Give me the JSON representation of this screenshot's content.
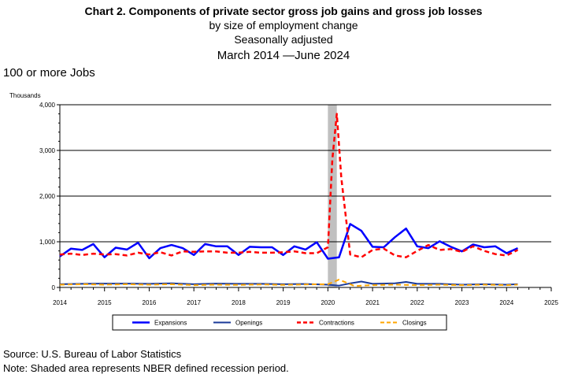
{
  "title_lines": [
    "Chart 2. Components of private sector gross job gains and gross job losses",
    "by size of employment change",
    "Seasonally adjusted",
    "March 2014 —June 2024"
  ],
  "subtitle": "100 or more Jobs",
  "source": "Source: U.S. Bureau of Labor Statistics",
  "note": "Note: Shaded area represents NBER defined recession period.",
  "chart_data": {
    "type": "line",
    "ylabel": "Thousands",
    "ylim": [
      0,
      4000
    ],
    "yticks": [
      0,
      1000,
      2000,
      3000,
      4000
    ],
    "ytick_labels": [
      "0",
      "1,000",
      "2,000",
      "3,000",
      "4,000"
    ],
    "xlim": [
      2014,
      2025
    ],
    "xticks": [
      "2014",
      "2015",
      "2016",
      "2017",
      "2018",
      "2019",
      "2020",
      "2021",
      "2022",
      "2023",
      "2024",
      "2025"
    ],
    "grid": "horizontal",
    "recession": {
      "start": 2020.0,
      "end": 2020.2,
      "color": "#c0c0c0"
    },
    "legend_position": "bottom",
    "series": [
      {
        "name": "Expansions",
        "color": "#0000ff",
        "style": "solid",
        "width": 2.5,
        "x": [
          2014.0,
          2014.25,
          2014.5,
          2014.75,
          2015.0,
          2015.25,
          2015.5,
          2015.75,
          2016.0,
          2016.25,
          2016.5,
          2016.75,
          2017.0,
          2017.25,
          2017.5,
          2017.75,
          2018.0,
          2018.25,
          2018.5,
          2018.75,
          2019.0,
          2019.25,
          2019.5,
          2019.75,
          2020.0,
          2020.25,
          2020.5,
          2020.75,
          2021.0,
          2021.25,
          2021.5,
          2021.75,
          2022.0,
          2022.25,
          2022.5,
          2022.75,
          2023.0,
          2023.25,
          2023.5,
          2023.75,
          2024.0,
          2024.25
        ],
        "y": [
          680,
          850,
          820,
          950,
          660,
          870,
          830,
          980,
          640,
          860,
          930,
          860,
          710,
          950,
          900,
          900,
          710,
          890,
          880,
          880,
          710,
          900,
          830,
          990,
          630,
          660,
          1390,
          1240,
          890,
          880,
          1100,
          1290,
          900,
          860,
          1010,
          890,
          790,
          940,
          880,
          900,
          750,
          860
        ]
      },
      {
        "name": "Openings",
        "color": "#1a3a99",
        "style": "solid",
        "width": 2,
        "x": [
          2014.0,
          2014.5,
          2015.0,
          2015.5,
          2016.0,
          2016.5,
          2017.0,
          2017.5,
          2018.0,
          2018.5,
          2019.0,
          2019.5,
          2020.0,
          2020.25,
          2020.5,
          2020.75,
          2021.0,
          2021.5,
          2021.75,
          2022.0,
          2022.5,
          2023.0,
          2023.5,
          2024.0,
          2024.25
        ],
        "y": [
          70,
          80,
          85,
          85,
          80,
          90,
          70,
          85,
          80,
          80,
          70,
          75,
          60,
          40,
          90,
          130,
          80,
          90,
          120,
          80,
          80,
          60,
          70,
          60,
          70
        ]
      },
      {
        "name": "Contractions",
        "color": "#ff0000",
        "style": "dashed",
        "width": 2.5,
        "x": [
          2014.0,
          2014.25,
          2014.5,
          2014.75,
          2015.0,
          2015.25,
          2015.5,
          2015.75,
          2016.0,
          2016.25,
          2016.5,
          2016.75,
          2017.0,
          2017.25,
          2017.5,
          2017.75,
          2018.0,
          2018.25,
          2018.5,
          2018.75,
          2019.0,
          2019.25,
          2019.5,
          2019.75,
          2020.0,
          2020.1,
          2020.2,
          2020.3,
          2020.5,
          2020.75,
          2021.0,
          2021.25,
          2021.5,
          2021.75,
          2022.0,
          2022.25,
          2022.5,
          2022.75,
          2023.0,
          2023.25,
          2023.5,
          2023.75,
          2024.0,
          2024.25
        ],
        "y": [
          720,
          740,
          710,
          740,
          720,
          730,
          700,
          760,
          720,
          770,
          700,
          790,
          780,
          790,
          790,
          760,
          760,
          780,
          760,
          760,
          770,
          790,
          750,
          750,
          880,
          2800,
          3800,
          2400,
          720,
          660,
          820,
          850,
          700,
          660,
          800,
          930,
          820,
          840,
          780,
          900,
          800,
          730,
          700,
          820
        ]
      },
      {
        "name": "Closings",
        "color": "#ffa500",
        "style": "dashed",
        "width": 2,
        "x": [
          2014.0,
          2014.5,
          2015.0,
          2015.5,
          2016.0,
          2016.5,
          2017.0,
          2017.5,
          2018.0,
          2018.5,
          2019.0,
          2019.5,
          2020.0,
          2020.25,
          2020.4,
          2020.6,
          2020.75,
          2021.0,
          2021.5,
          2022.0,
          2022.5,
          2023.0,
          2023.5,
          2024.0,
          2024.25
        ],
        "y": [
          60,
          70,
          60,
          70,
          60,
          70,
          50,
          60,
          55,
          65,
          55,
          65,
          70,
          170,
          110,
          30,
          40,
          50,
          60,
          50,
          60,
          50,
          60,
          50,
          60
        ]
      }
    ]
  }
}
